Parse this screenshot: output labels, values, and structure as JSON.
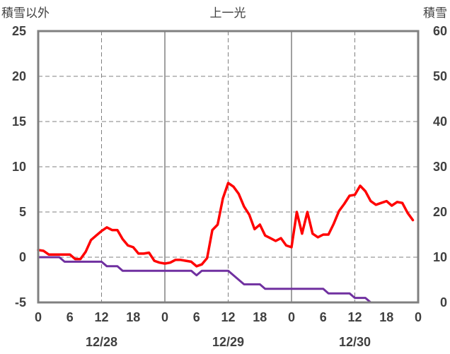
{
  "chart_data": {
    "type": "line",
    "title": "上一光",
    "ylabel_left": "積雪以外",
    "ylabel_right": "積雪",
    "ylim_left": [
      -5,
      25
    ],
    "ylim_right": [
      0,
      60
    ],
    "yticks_left": [
      "25",
      "20",
      "15",
      "10",
      "5",
      "0",
      "-5"
    ],
    "yticks_right": [
      "60",
      "50",
      "40",
      "30",
      "20",
      "10",
      "0"
    ],
    "xticks": [
      "0",
      "6",
      "12",
      "18",
      "0",
      "6",
      "12",
      "18",
      "0",
      "6",
      "12",
      "18",
      "0"
    ],
    "date_labels": [
      "12/28",
      "12/29",
      "12/30"
    ],
    "xlim_hours": [
      0,
      72
    ],
    "grid": true,
    "colors": {
      "temperature": "#ff0000",
      "snow": "#7030a0",
      "axis": "#808080",
      "grid": "#808080"
    },
    "series": [
      {
        "axis": "left",
        "color": "#ff0000",
        "x": [
          0,
          1,
          2,
          3,
          4,
          5,
          6,
          7,
          8,
          9,
          10,
          11,
          12,
          13,
          14,
          15,
          16,
          17,
          18,
          19,
          20,
          21,
          22,
          23,
          24,
          25,
          26,
          27,
          28,
          29,
          30,
          31,
          32,
          33,
          34,
          35,
          36,
          37,
          38,
          39,
          40,
          41,
          42,
          43,
          44,
          45,
          46,
          47,
          48,
          49,
          50,
          51,
          52,
          53,
          54,
          55,
          56,
          57,
          58,
          59,
          60,
          61,
          62,
          63,
          64,
          65,
          66,
          67,
          68,
          69,
          70,
          71
        ],
        "y": [
          0.8,
          0.7,
          0.3,
          0.3,
          0.3,
          0.3,
          0.3,
          -0.2,
          -0.2,
          0.6,
          1.9,
          2.4,
          2.9,
          3.3,
          3.0,
          3.0,
          2.0,
          1.3,
          1.1,
          0.4,
          0.4,
          0.5,
          -0.4,
          -0.6,
          -0.7,
          -0.6,
          -0.3,
          -0.3,
          -0.4,
          -0.5,
          -1.0,
          -0.8,
          -0.1,
          3.0,
          3.6,
          6.5,
          8.2,
          7.8,
          7.0,
          5.6,
          4.7,
          3.1,
          3.6,
          2.4,
          2.1,
          1.8,
          2.1,
          1.3,
          1.1,
          5.0,
          2.6,
          5.0,
          2.6,
          2.2,
          2.5,
          2.5,
          3.7,
          5.1,
          5.9,
          6.8,
          6.9,
          7.9,
          7.3,
          6.2,
          5.8,
          6.0,
          6.2,
          5.7,
          6.1,
          6.0,
          4.9,
          4.1
        ]
      },
      {
        "axis": "right",
        "color": "#7030a0",
        "x": [
          0,
          4,
          5,
          12,
          13,
          15,
          16,
          24,
          29,
          30,
          31,
          36,
          37,
          39,
          40,
          42,
          43,
          48,
          54,
          55,
          58,
          59,
          60,
          61,
          62,
          63,
          64,
          72
        ],
        "y": [
          10,
          10,
          9,
          9,
          8,
          8,
          7,
          7,
          7,
          6,
          7,
          7,
          6,
          4,
          4,
          4,
          3,
          3,
          3,
          2,
          2,
          2,
          1,
          1,
          1,
          0,
          0,
          0
        ]
      }
    ]
  }
}
